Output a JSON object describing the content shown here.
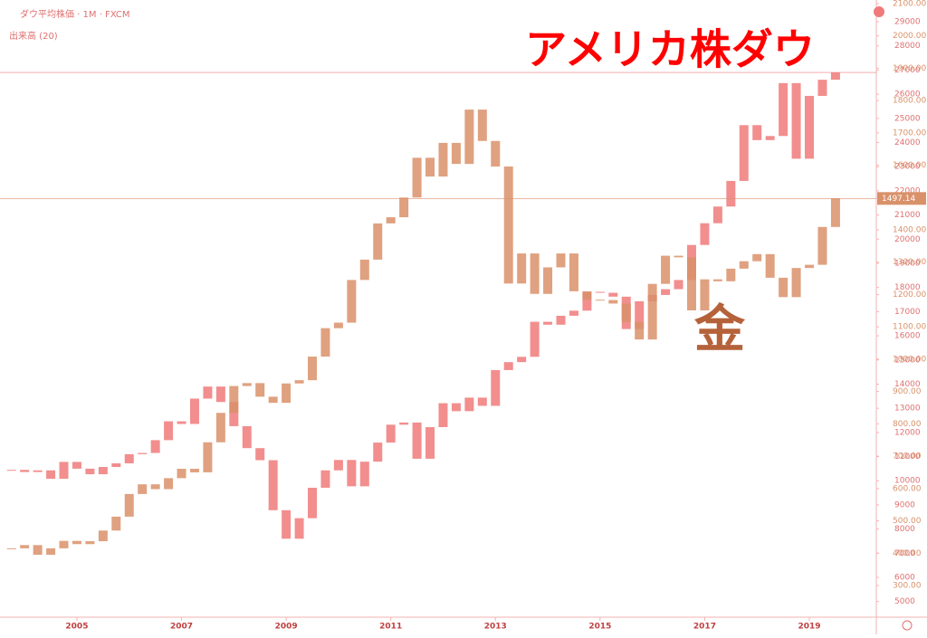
{
  "header": {
    "symbol": "ダウ平均株価 · 1M · FXCM",
    "volume": "出来高 (20)"
  },
  "chart_data": {
    "type": "candlestick",
    "title": "アメリカ株ダウ",
    "subtitle": "金",
    "x": [
      2003.75,
      2004,
      2004.25,
      2004.5,
      2004.75,
      2005,
      2005.25,
      2005.5,
      2005.75,
      2006,
      2006.25,
      2006.5,
      2006.75,
      2007,
      2007.25,
      2007.5,
      2007.75,
      2008,
      2008.25,
      2008.5,
      2008.75,
      2009,
      2009.25,
      2009.5,
      2009.75,
      2010,
      2010.25,
      2010.5,
      2010.75,
      2011,
      2011.25,
      2011.5,
      2011.75,
      2012,
      2012.25,
      2012.5,
      2012.75,
      2013,
      2013.25,
      2013.5,
      2013.75,
      2014,
      2014.25,
      2014.5,
      2014.75,
      2015,
      2015.25,
      2015.5,
      2015.75,
      2016,
      2016.25,
      2016.5,
      2016.75,
      2017,
      2017.25,
      2017.5,
      2017.75,
      2018,
      2018.25,
      2018.5,
      2018.75,
      2019,
      2019.25,
      2019.5
    ],
    "series": [
      {
        "name": "アメリカ株ダウ",
        "color": "#f07a7a",
        "axis": "y",
        "values": [
          10450,
          10360,
          10430,
          10080,
          10780,
          10500,
          10270,
          10570,
          10720,
          11100,
          11150,
          11680,
          12460,
          12350,
          13400,
          13900,
          13260,
          12260,
          11350,
          10850,
          8780,
          7600,
          8450,
          9710,
          10430,
          10860,
          9770,
          10790,
          11580,
          12320,
          12410,
          10910,
          12220,
          13210,
          12880,
          13440,
          13100,
          14580,
          14910,
          15130,
          16580,
          16460,
          16830,
          17040,
          17820,
          17780,
          17620,
          16280,
          17430,
          17690,
          17930,
          18310,
          19760,
          20660,
          21350,
          22410,
          24720,
          24100,
          24270,
          26460,
          23330,
          25930,
          26600,
          26900
        ]
      },
      {
        "name": "金",
        "color": "#d9916a",
        "axis": "y2",
        "values": [
          415,
          425,
          395,
          415,
          438,
          428,
          437,
          470,
          513,
          583,
          613,
          598,
          632,
          661,
          650,
          743,
          834,
          917,
          926,
          884,
          865,
          925,
          935,
          1008,
          1096,
          1113,
          1245,
          1308,
          1420,
          1439,
          1500,
          1623,
          1565,
          1669,
          1604,
          1772,
          1675,
          1596,
          1234,
          1327,
          1202,
          1284,
          1327,
          1210,
          1184,
          1183,
          1172,
          1115,
          1061,
          1233,
          1320,
          1315,
          1151,
          1247,
          1241,
          1280,
          1303,
          1325,
          1252,
          1192,
          1282,
          1292,
          1409,
          1497.14
        ]
      }
    ],
    "last_label": "1497.14",
    "xlim": [
      2003.53,
      2020.28
    ],
    "xticks": [
      2005,
      2007,
      2009,
      2011,
      2013,
      2015,
      2017,
      2019
    ],
    "ylim": [
      4352,
      29900
    ],
    "yticks": [
      5000,
      6000,
      7000,
      8000,
      9000,
      10000,
      11000,
      12000,
      13000,
      14000,
      15000,
      16000,
      17000,
      18000,
      19000,
      20000,
      21000,
      22000,
      23000,
      24000,
      25000,
      26000,
      27000,
      28000,
      29000
    ],
    "y2lim": [
      202,
      2111
    ],
    "y2ticks": [
      {
        "value": 300,
        "label": "300.00"
      },
      {
        "value": 400,
        "label": "400.00"
      },
      {
        "value": 500,
        "label": "500.00"
      },
      {
        "value": 600,
        "label": "600.00"
      },
      {
        "value": 700,
        "label": "700.00"
      },
      {
        "value": 800,
        "label": "800.00"
      },
      {
        "value": 900,
        "label": "900.00"
      },
      {
        "value": 1000,
        "label": "1000.00"
      },
      {
        "value": 1100,
        "label": "1100.00"
      },
      {
        "value": 1200,
        "label": "1200.00"
      },
      {
        "value": 1300,
        "label": "1300.00"
      },
      {
        "value": 1400,
        "label": "1400.00"
      },
      {
        "value": 1500,
        "label": "1500.00"
      },
      {
        "value": 1600,
        "label": "1600.00"
      },
      {
        "value": 1700,
        "label": "1700.00"
      },
      {
        "value": 1800,
        "label": "1800.00"
      },
      {
        "value": 1900,
        "label": "1900.00"
      },
      {
        "value": 2000,
        "label": "2000.00"
      },
      {
        "value": 2100,
        "label": "2100.00"
      }
    ],
    "grid": false
  }
}
